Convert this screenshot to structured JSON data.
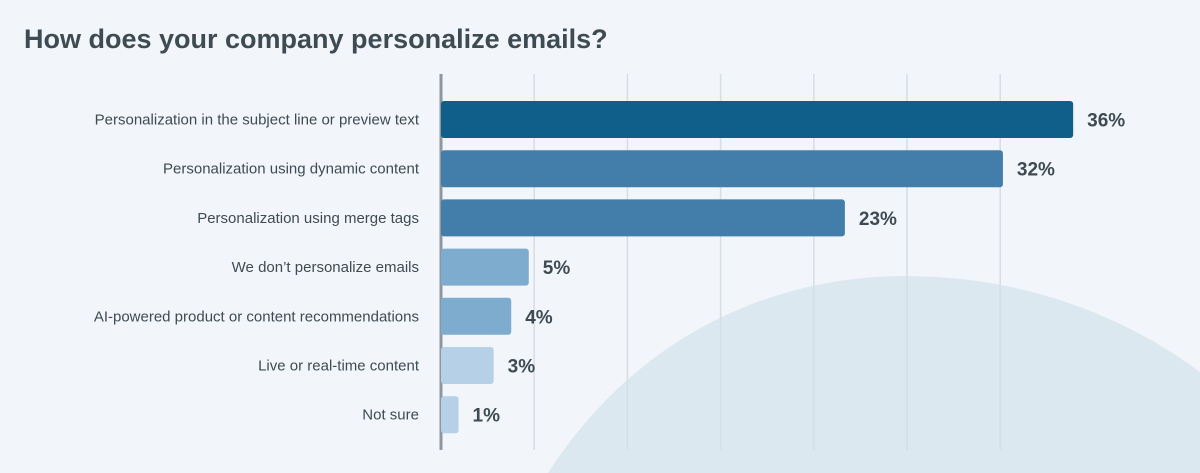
{
  "chart_data": {
    "type": "bar",
    "orientation": "horizontal",
    "title": "How does your company personalize emails?",
    "categories": [
      "Personalization in the subject line or preview text",
      "Personalization using dynamic content",
      "Personalization using merge tags",
      "We don’t personalize emails",
      "AI-powered product or content recommendations",
      "Live or real-time content",
      "Not sure"
    ],
    "values": [
      36,
      32,
      23,
      5,
      4,
      3,
      1
    ],
    "data_labels": [
      "36%",
      "32%",
      "23%",
      "5%",
      "4%",
      "3%",
      "1%"
    ],
    "colors": [
      "#0f5f8a",
      "#437da9",
      "#437da9",
      "#7eaccf",
      "#7eaccf",
      "#b5d0e7",
      "#b5d0e7"
    ],
    "grid": true,
    "unit": "%"
  }
}
